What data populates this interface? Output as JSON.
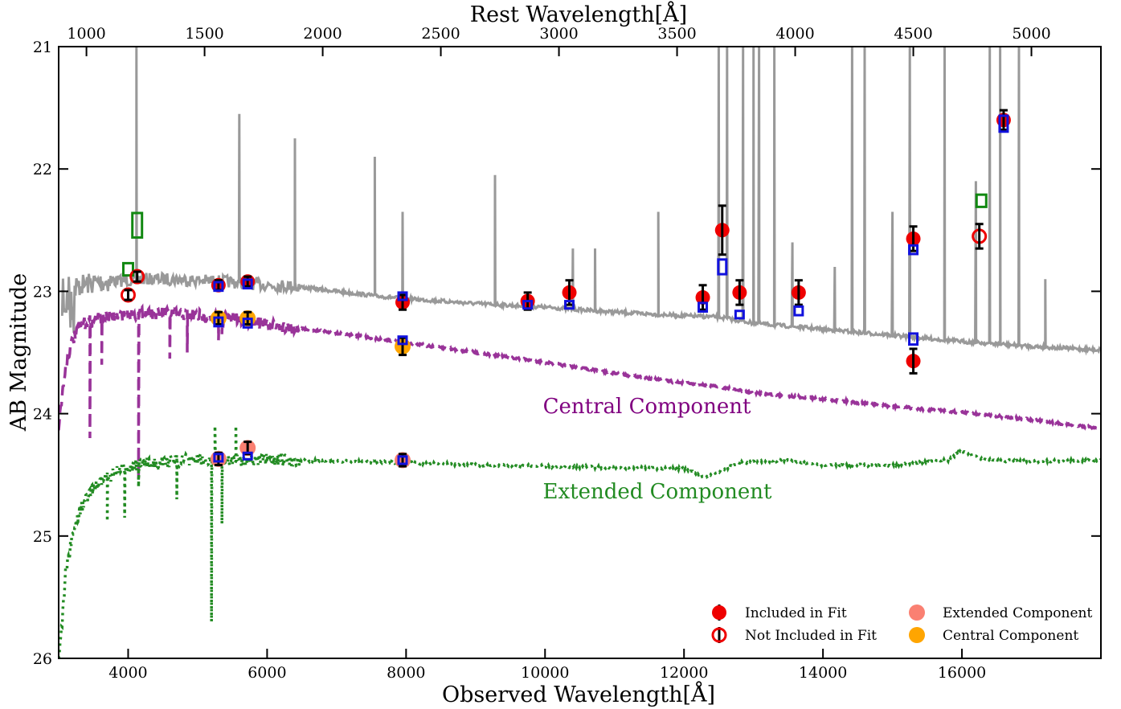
{
  "chart_data": {
    "type": "scatter",
    "xlabel": "Observed Wavelength[Å]",
    "xlabel_top": "Rest Wavelength[Å]",
    "ylabel": "AB Magnitude",
    "xlim": [
      3000,
      18000
    ],
    "ylim": [
      26,
      21
    ],
    "y_inverted": true,
    "x_ticks": [
      4000,
      6000,
      8000,
      10000,
      12000,
      14000,
      16000
    ],
    "x_tick_labels": [
      "4000",
      "6000",
      "8000",
      "10000",
      "12000",
      "14000",
      "16000"
    ],
    "top_ticks": [
      1000,
      1500,
      2000,
      2500,
      3000,
      3500,
      4000,
      4500,
      5000
    ],
    "top_tick_labels": [
      "1000",
      "1500",
      "2000",
      "2500",
      "3000",
      "3500",
      "4000",
      "4500",
      "5000"
    ],
    "y_ticks": [
      21,
      22,
      23,
      24,
      25,
      26
    ],
    "y_tick_labels": [
      "21",
      "22",
      "23",
      "24",
      "25",
      "26"
    ],
    "redshift_factor": 3.4,
    "annotations": [
      {
        "text": "Central Component",
        "x": 12900,
        "y": 23.97,
        "color": "#800080"
      },
      {
        "text": "Extended Component",
        "x": 12900,
        "y": 24.67,
        "color": "#228B22"
      }
    ],
    "legend": {
      "placement": "bottom-right",
      "entries": [
        {
          "label": "Included in Fit",
          "marker": "filled-circle",
          "color": "#ee0000"
        },
        {
          "label": "Not Included in Fit",
          "marker": "open-circle",
          "color": "#ee0000"
        },
        {
          "label": "Extended Component",
          "marker": "filled-circle",
          "color": "#fa8072"
        },
        {
          "label": "Central Component",
          "marker": "filled-circle",
          "color": "#ffa500"
        }
      ]
    },
    "series": [
      {
        "kind": "spectrum",
        "color": "#999999",
        "style": "solid",
        "continuum": [
          [
            3050,
            22.98
          ],
          [
            3400,
            22.94
          ],
          [
            3700,
            22.92
          ],
          [
            4000,
            22.91
          ],
          [
            4200,
            22.9
          ],
          [
            4600,
            22.9
          ],
          [
            5000,
            22.91
          ],
          [
            5400,
            22.92
          ],
          [
            5800,
            22.94
          ],
          [
            6400,
            22.96
          ],
          [
            7000,
            23.0
          ],
          [
            7600,
            23.04
          ],
          [
            8000,
            23.06
          ],
          [
            9000,
            23.1
          ],
          [
            10000,
            23.13
          ],
          [
            11000,
            23.17
          ],
          [
            12000,
            23.2
          ],
          [
            12500,
            23.21
          ],
          [
            13000,
            23.26
          ],
          [
            14000,
            23.31
          ],
          [
            15000,
            23.36
          ],
          [
            16000,
            23.41
          ],
          [
            17000,
            23.45
          ],
          [
            18000,
            23.48
          ]
        ],
        "lines": [
          [
            4120,
            21.0
          ],
          [
            5600,
            21.55
          ],
          [
            6400,
            21.75
          ],
          [
            7550,
            21.9
          ],
          [
            7950,
            22.35
          ],
          [
            9280,
            22.05
          ],
          [
            10400,
            22.65
          ],
          [
            10720,
            22.65
          ],
          [
            11630,
            22.35
          ],
          [
            12500,
            21.0
          ],
          [
            12620,
            21.0
          ],
          [
            12850,
            21.0
          ],
          [
            13000,
            21.0
          ],
          [
            13080,
            21.0
          ],
          [
            13300,
            21.0
          ],
          [
            13560,
            22.6
          ],
          [
            14170,
            22.8
          ],
          [
            14420,
            21.0
          ],
          [
            14600,
            21.0
          ],
          [
            15000,
            22.35
          ],
          [
            15250,
            21.0
          ],
          [
            15750,
            21.0
          ],
          [
            16200,
            22.1
          ],
          [
            16400,
            21.0
          ],
          [
            16550,
            21.0
          ],
          [
            16820,
            21.0
          ],
          [
            17200,
            22.9
          ]
        ]
      },
      {
        "kind": "model",
        "name": "Central Component",
        "color": "#993399",
        "style": "dashed",
        "points": [
          [
            3000,
            24.1
          ],
          [
            3060,
            23.8
          ],
          [
            3120,
            23.55
          ],
          [
            3200,
            23.4
          ],
          [
            3300,
            23.3
          ],
          [
            3400,
            23.25
          ],
          [
            3600,
            23.22
          ],
          [
            3800,
            23.2
          ],
          [
            4000,
            23.2
          ],
          [
            4200,
            23.18
          ],
          [
            4500,
            23.18
          ],
          [
            4800,
            23.19
          ],
          [
            5100,
            23.2
          ],
          [
            5400,
            23.22
          ],
          [
            5700,
            23.24
          ],
          [
            6000,
            23.27
          ],
          [
            7000,
            23.34
          ],
          [
            8000,
            23.42
          ],
          [
            9000,
            23.5
          ],
          [
            10000,
            23.58
          ],
          [
            11000,
            23.67
          ],
          [
            12000,
            23.75
          ],
          [
            12500,
            23.78
          ],
          [
            13000,
            23.83
          ],
          [
            14000,
            23.88
          ],
          [
            15000,
            23.94
          ],
          [
            16000,
            23.99
          ],
          [
            17000,
            24.05
          ],
          [
            18000,
            24.12
          ]
        ],
        "dips": [
          [
            3450,
            24.2
          ],
          [
            3620,
            23.6
          ],
          [
            4150,
            24.55
          ],
          [
            4600,
            23.55
          ],
          [
            4850,
            23.5
          ],
          [
            5300,
            23.4
          ],
          [
            5350,
            23.35
          ]
        ]
      },
      {
        "kind": "model",
        "name": "Extended Component",
        "color": "#228B22",
        "style": "dotted",
        "points": [
          [
            3000,
            26.0
          ],
          [
            3050,
            25.7
          ],
          [
            3100,
            25.3
          ],
          [
            3200,
            25.0
          ],
          [
            3300,
            24.8
          ],
          [
            3400,
            24.7
          ],
          [
            3500,
            24.6
          ],
          [
            3700,
            24.52
          ],
          [
            3900,
            24.46
          ],
          [
            4100,
            24.42
          ],
          [
            4400,
            24.4
          ],
          [
            4800,
            24.38
          ],
          [
            5200,
            24.38
          ],
          [
            5600,
            24.38
          ],
          [
            6000,
            24.38
          ],
          [
            7000,
            24.39
          ],
          [
            8000,
            24.4
          ],
          [
            9000,
            24.42
          ],
          [
            10000,
            24.43
          ],
          [
            11000,
            24.44
          ],
          [
            12000,
            24.45
          ],
          [
            12300,
            24.52
          ],
          [
            12800,
            24.4
          ],
          [
            13500,
            24.38
          ],
          [
            14000,
            24.42
          ],
          [
            15000,
            24.42
          ],
          [
            15800,
            24.38
          ],
          [
            16000,
            24.3
          ],
          [
            16300,
            24.38
          ],
          [
            17000,
            24.39
          ],
          [
            18000,
            24.38
          ]
        ],
        "dips": [
          [
            3700,
            24.88
          ],
          [
            3950,
            24.85
          ],
          [
            4150,
            24.6
          ],
          [
            4700,
            24.7
          ],
          [
            5200,
            25.7
          ],
          [
            5350,
            24.9
          ]
        ],
        "spikes": [
          [
            5250,
            24.1
          ],
          [
            5550,
            24.1
          ]
        ]
      }
    ],
    "points": {
      "included_in_fit": [
        {
          "x": 5300,
          "y": 22.95,
          "yerr": 0.04
        },
        {
          "x": 5720,
          "y": 22.92,
          "yerr": 0.04
        },
        {
          "x": 7950,
          "y": 23.09,
          "yerr": 0.06
        },
        {
          "x": 9750,
          "y": 23.08,
          "yerr": 0.07
        },
        {
          "x": 10350,
          "y": 23.01,
          "yerr": 0.1
        },
        {
          "x": 12270,
          "y": 23.05,
          "yerr": 0.1
        },
        {
          "x": 12550,
          "y": 22.5,
          "yerr": 0.2
        },
        {
          "x": 12800,
          "y": 23.01,
          "yerr": 0.1
        },
        {
          "x": 13650,
          "y": 23.01,
          "yerr": 0.1
        },
        {
          "x": 15300,
          "y": 22.57,
          "yerr": 0.1
        },
        {
          "x": 15300,
          "y": 23.57,
          "yerr": 0.1
        },
        {
          "x": 16600,
          "y": 21.6,
          "yerr": 0.08
        }
      ],
      "not_included_in_fit": [
        {
          "x": 4000,
          "y": 23.03,
          "yerr": 0.04
        },
        {
          "x": 4130,
          "y": 22.88,
          "yerr": 0.04
        },
        {
          "x": 16250,
          "y": 22.55,
          "yerr": 0.1
        }
      ],
      "central_component": [
        {
          "x": 5300,
          "y": 23.22,
          "yerr": 0.05
        },
        {
          "x": 5720,
          "y": 23.22,
          "yerr": 0.05
        },
        {
          "x": 7950,
          "y": 23.45,
          "yerr": 0.07
        }
      ],
      "extended_component": [
        {
          "x": 5300,
          "y": 24.37,
          "yerr": 0.05
        },
        {
          "x": 5720,
          "y": 24.28,
          "yerr": 0.05
        },
        {
          "x": 7950,
          "y": 24.38,
          "yerr": 0.05
        }
      ],
      "model_blue_boxes": [
        {
          "x": 5300,
          "y": 22.96,
          "h": 0.07
        },
        {
          "x": 5720,
          "y": 22.94,
          "h": 0.07
        },
        {
          "x": 7950,
          "y": 23.04,
          "h": 0.06
        },
        {
          "x": 9750,
          "y": 23.11,
          "h": 0.06
        },
        {
          "x": 10350,
          "y": 23.11,
          "h": 0.06
        },
        {
          "x": 12270,
          "y": 23.13,
          "h": 0.07
        },
        {
          "x": 12550,
          "y": 22.8,
          "h": 0.12
        },
        {
          "x": 12800,
          "y": 23.19,
          "h": 0.06
        },
        {
          "x": 13650,
          "y": 23.16,
          "h": 0.07
        },
        {
          "x": 15300,
          "y": 22.66,
          "h": 0.07
        },
        {
          "x": 15300,
          "y": 23.39,
          "h": 0.09
        },
        {
          "x": 16600,
          "y": 21.63,
          "h": 0.13
        },
        {
          "x": 5300,
          "y": 23.25,
          "h": 0.07
        },
        {
          "x": 5720,
          "y": 23.26,
          "h": 0.07
        },
        {
          "x": 7950,
          "y": 23.4,
          "h": 0.06
        },
        {
          "x": 5300,
          "y": 24.36,
          "h": 0.06
        },
        {
          "x": 5720,
          "y": 24.34,
          "h": 0.04
        },
        {
          "x": 7950,
          "y": 24.38,
          "h": 0.06
        }
      ],
      "model_green_boxes": [
        {
          "x": 4000,
          "y": 22.82,
          "h": 0.1
        },
        {
          "x": 4130,
          "y": 22.46,
          "h": 0.2
        },
        {
          "x": 16280,
          "y": 22.26,
          "h": 0.1
        }
      ]
    }
  }
}
